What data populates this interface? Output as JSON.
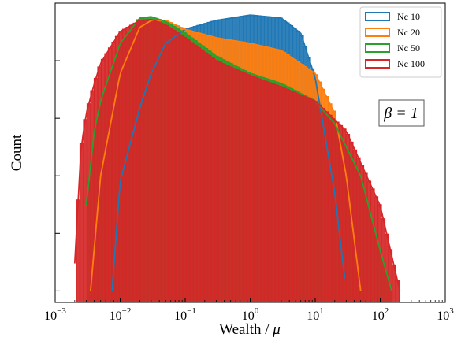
{
  "chart_data": {
    "type": "histogram",
    "xscale": "log",
    "yscale": "log",
    "xlim": [
      0.001,
      1000
    ],
    "xlabel_text": "Wealth / ",
    "xlabel_symbol": "μ",
    "ylabel": "Count",
    "annotation": "β = 1",
    "x_ticks": [
      {
        "base": "10",
        "exp": "−3",
        "value": 0.001
      },
      {
        "base": "10",
        "exp": "−2",
        "value": 0.01
      },
      {
        "base": "10",
        "exp": "−1",
        "value": 0.1
      },
      {
        "base": "10",
        "exp": "0",
        "value": 1
      },
      {
        "base": "10",
        "exp": "1",
        "value": 10
      },
      {
        "base": "10",
        "exp": "2",
        "value": 100
      },
      {
        "base": "10",
        "exp": "3",
        "value": 1000
      }
    ],
    "legend_position": "top-right",
    "series": [
      {
        "name": "Nc 10",
        "color": "#1f77b4",
        "x": [
          0.0075,
          0.01,
          0.02,
          0.03,
          0.05,
          0.1,
          0.3,
          1,
          3,
          6,
          10,
          20,
          30
        ],
        "y": [
          1e-05,
          0.0008,
          0.015,
          0.06,
          0.2,
          0.35,
          0.5,
          0.62,
          0.55,
          0.3,
          0.05,
          0.0005,
          1e-05
        ]
      },
      {
        "name": "Nc 20",
        "color": "#ff7f0e",
        "x": [
          0.0035,
          0.005,
          0.01,
          0.02,
          0.03,
          0.05,
          0.1,
          0.3,
          1,
          3,
          10,
          20,
          30,
          50
        ],
        "y": [
          1e-05,
          0.001,
          0.06,
          0.38,
          0.5,
          0.5,
          0.35,
          0.25,
          0.2,
          0.15,
          0.06,
          0.012,
          0.001,
          1e-05
        ]
      },
      {
        "name": "Nc 50",
        "color": "#2ca02c",
        "x": [
          0.003,
          0.004,
          0.005,
          0.01,
          0.02,
          0.03,
          0.05,
          0.1,
          0.3,
          1,
          3,
          10,
          20,
          50,
          100,
          150
        ],
        "y": [
          0.0003,
          0.006,
          0.02,
          0.2,
          0.55,
          0.58,
          0.48,
          0.3,
          0.12,
          0.06,
          0.04,
          0.02,
          0.008,
          0.001,
          5e-05,
          1e-05
        ]
      },
      {
        "name": "Nc 100",
        "color": "#d62728",
        "x": [
          0.002,
          0.0025,
          0.003,
          0.004,
          0.005,
          0.01,
          0.02,
          0.03,
          0.05,
          0.1,
          0.3,
          1,
          3,
          10,
          30,
          100,
          200
        ],
        "y": [
          3e-05,
          0.003,
          0.012,
          0.04,
          0.09,
          0.32,
          0.5,
          0.52,
          0.42,
          0.25,
          0.1,
          0.055,
          0.035,
          0.02,
          0.006,
          0.0003,
          1e-05
        ]
      }
    ]
  }
}
